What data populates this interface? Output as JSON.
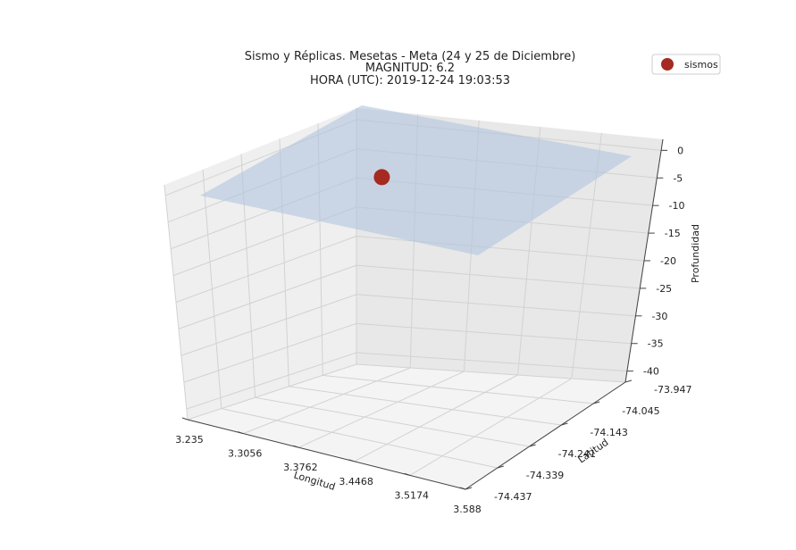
{
  "chart_data": {
    "type": "scatter",
    "projection": "3d",
    "title": {
      "line1": "Sismo y Réplicas. Mesetas - Meta (24 y 25 de Diciembre)",
      "line2": "MAGNITUD: 6.2",
      "line3": "HORA (UTC): 2019-12-24 19:03:53"
    },
    "xlabel": "Longitud",
    "ylabel": "Latitud",
    "zlabel": "Profundidad",
    "x_ticks": [
      "3.235",
      "3.3056",
      "3.3762",
      "3.4468",
      "3.5174",
      "3.588"
    ],
    "y_ticks": [
      "-73.947",
      "-74.045",
      "-74.143",
      "-74.241",
      "-74.339",
      "-74.437"
    ],
    "z_ticks": [
      "0",
      "-5",
      "-10",
      "-15",
      "-20",
      "-25",
      "-30",
      "-35",
      "-40"
    ],
    "xlim": [
      3.235,
      3.588
    ],
    "ylim": [
      -74.437,
      -73.947
    ],
    "zlim": [
      -42,
      2
    ],
    "grid": true,
    "legend": {
      "entries": [
        "sismos"
      ],
      "position": "top-right"
    },
    "series": [
      {
        "name": "sismos",
        "color": "#a52a21",
        "points": [
          {
            "lon": 3.35,
            "lat": -74.1,
            "depth": -4
          }
        ]
      }
    ],
    "surface": {
      "depth": 0,
      "color": "#b0c4de",
      "opacity": 0.6
    }
  }
}
